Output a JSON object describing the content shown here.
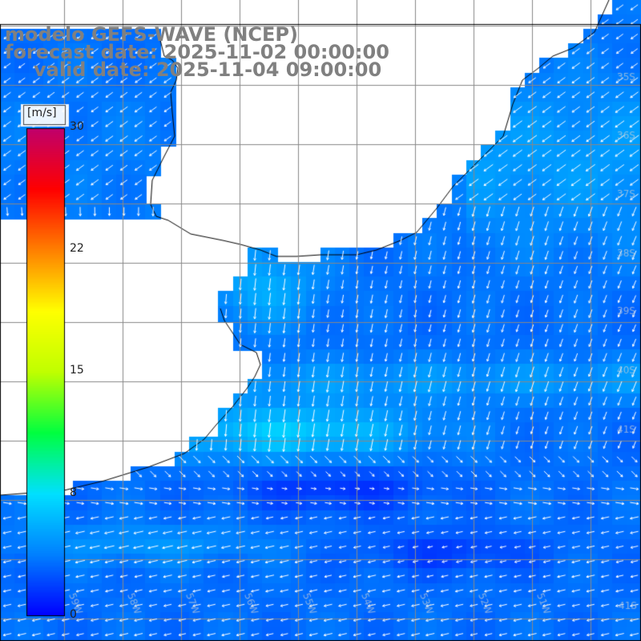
{
  "title": {
    "line1": "modelo GEFS-WAVE (NCEP)",
    "line2": "forecast date: 2025-11-02 00:00:00",
    "line3": "valid date: 2025-11-04 09:00:00"
  },
  "colorbar": {
    "unit": "[m/s]",
    "ticks": [
      "30",
      "22",
      "15",
      "8",
      "0"
    ],
    "tick_values": [
      30,
      22,
      15,
      8,
      0
    ],
    "min": 0,
    "max": 30,
    "colors": [
      "#0000ff",
      "#0080ff",
      "#00e0ff",
      "#00ff40",
      "#c0ff00",
      "#ffff00",
      "#ff8000",
      "#ff0000",
      "#c0006c"
    ]
  },
  "colors": {
    "land": "#ffffff",
    "coast": "#000000",
    "grid": "#888888",
    "arrows": "#ffffff",
    "title": "#808080"
  },
  "map": {
    "lat_labels": [
      "35S",
      "36S",
      "37S",
      "38S",
      "39S",
      "40S",
      "41S"
    ],
    "lon_labels": [
      "59W",
      "58W",
      "57W",
      "56W",
      "55W",
      "54W",
      "53W",
      "52W",
      "51W"
    ],
    "last_lat_label": "41S"
  }
}
